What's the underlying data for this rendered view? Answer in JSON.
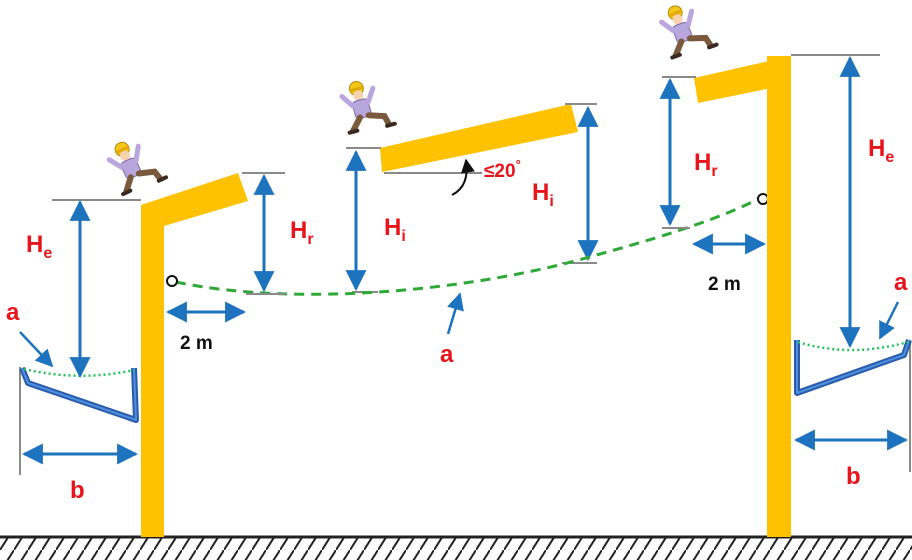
{
  "colors": {
    "structure": "#ffc200",
    "dimension_arrow": "#1e73be",
    "net_line": "#2ea836",
    "net_sag": "#22c25a",
    "label_red": "#e8141b",
    "reference_line": "#8a8a8a",
    "catch_net_frame": "#2a5caa",
    "ground": "#222222",
    "worker_shirt": "#b9a6dc",
    "worker_helmet": "#f3c61a",
    "worker_pants": "#7a5a3c"
  },
  "icons": {
    "worker": "falling-worker-icon",
    "anchor": "anchor-ring-icon"
  },
  "labels": {
    "he_main": "H",
    "he_sub": "e",
    "hr_main": "H",
    "hr_sub": "r",
    "hi_main": "H",
    "hi_sub": "i",
    "net": "a",
    "width": "b",
    "distance": "2 m",
    "angle_prefix": "≤20",
    "angle_unit": "°"
  }
}
